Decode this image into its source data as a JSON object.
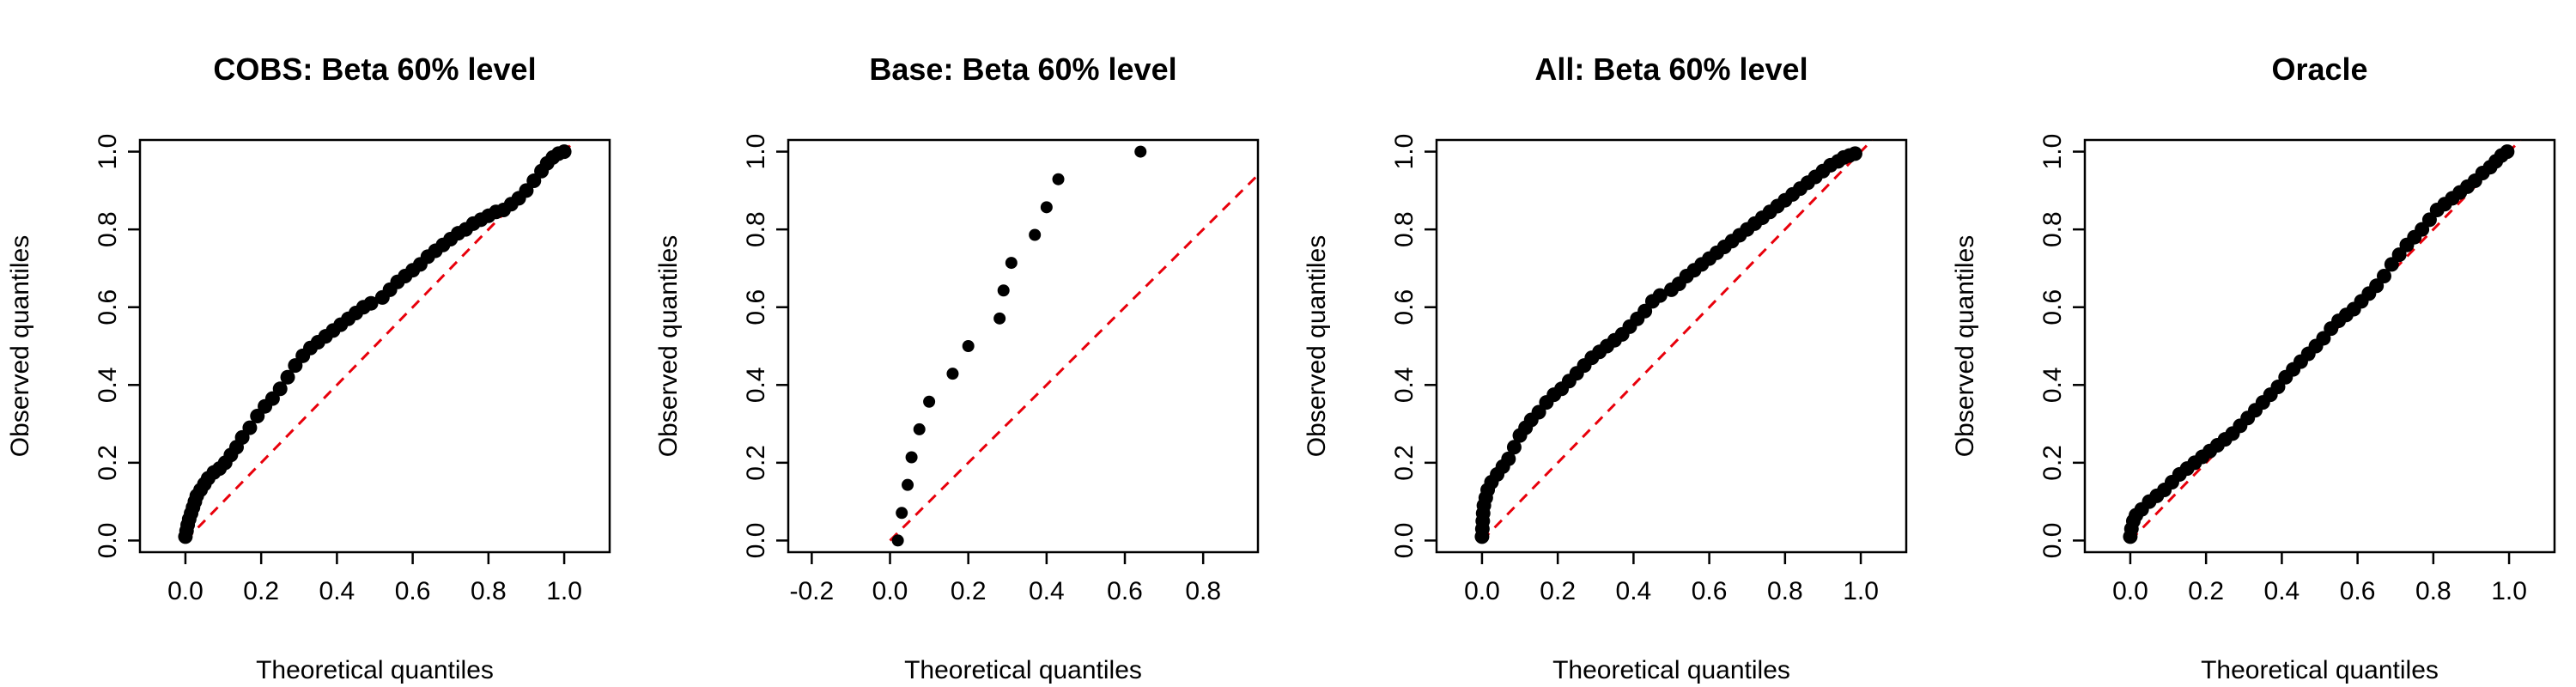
{
  "colors": {
    "points": "#000000",
    "reference_line": "#e8000b",
    "frame": "#000000"
  },
  "chart_data": [
    {
      "type": "scatter",
      "title": "COBS: Beta 60% level",
      "xlabel": "Theoretical quantiles",
      "ylabel": "Observed quantiles",
      "xlim": [
        -0.12,
        1.12
      ],
      "ylim": [
        -0.03,
        1.03
      ],
      "xticks": [
        "0.0",
        "0.2",
        "0.4",
        "0.6",
        "0.8",
        "1.0"
      ],
      "yticks": [
        "0.0",
        "0.2",
        "0.4",
        "0.6",
        "0.8",
        "1.0"
      ],
      "reference_line": "y = x (dashed red)",
      "points": [
        [
          0.0,
          0.01
        ],
        [
          0.003,
          0.025
        ],
        [
          0.006,
          0.04
        ],
        [
          0.01,
          0.055
        ],
        [
          0.015,
          0.07
        ],
        [
          0.02,
          0.085
        ],
        [
          0.025,
          0.1
        ],
        [
          0.03,
          0.115
        ],
        [
          0.04,
          0.13
        ],
        [
          0.05,
          0.145
        ],
        [
          0.06,
          0.16
        ],
        [
          0.075,
          0.175
        ],
        [
          0.09,
          0.185
        ],
        [
          0.105,
          0.2
        ],
        [
          0.12,
          0.22
        ],
        [
          0.135,
          0.24
        ],
        [
          0.15,
          0.265
        ],
        [
          0.17,
          0.29
        ],
        [
          0.19,
          0.32
        ],
        [
          0.21,
          0.345
        ],
        [
          0.23,
          0.365
        ],
        [
          0.25,
          0.39
        ],
        [
          0.27,
          0.42
        ],
        [
          0.29,
          0.45
        ],
        [
          0.31,
          0.475
        ],
        [
          0.33,
          0.495
        ],
        [
          0.35,
          0.51
        ],
        [
          0.37,
          0.525
        ],
        [
          0.39,
          0.54
        ],
        [
          0.41,
          0.555
        ],
        [
          0.43,
          0.57
        ],
        [
          0.45,
          0.585
        ],
        [
          0.47,
          0.6
        ],
        [
          0.49,
          0.61
        ],
        [
          0.52,
          0.625
        ],
        [
          0.54,
          0.645
        ],
        [
          0.56,
          0.665
        ],
        [
          0.58,
          0.68
        ],
        [
          0.6,
          0.695
        ],
        [
          0.62,
          0.71
        ],
        [
          0.64,
          0.73
        ],
        [
          0.66,
          0.745
        ],
        [
          0.68,
          0.76
        ],
        [
          0.7,
          0.775
        ],
        [
          0.72,
          0.79
        ],
        [
          0.74,
          0.8
        ],
        [
          0.76,
          0.815
        ],
        [
          0.78,
          0.825
        ],
        [
          0.8,
          0.835
        ],
        [
          0.82,
          0.845
        ],
        [
          0.84,
          0.85
        ],
        [
          0.86,
          0.865
        ],
        [
          0.88,
          0.88
        ],
        [
          0.9,
          0.9
        ],
        [
          0.92,
          0.925
        ],
        [
          0.94,
          0.95
        ],
        [
          0.955,
          0.97
        ],
        [
          0.97,
          0.985
        ],
        [
          0.985,
          0.995
        ],
        [
          1.0,
          1.0
        ]
      ]
    },
    {
      "type": "scatter",
      "title": "Base: Beta 60% level",
      "xlabel": "Theoretical quantiles",
      "ylabel": "Observed quantiles",
      "xlim": [
        -0.26,
        0.94
      ],
      "ylim": [
        -0.03,
        1.03
      ],
      "xticks": [
        "-0.2",
        "0.0",
        "0.2",
        "0.4",
        "0.6",
        "0.8"
      ],
      "yticks": [
        "0.0",
        "0.2",
        "0.4",
        "0.6",
        "0.8",
        "1.0"
      ],
      "reference_line": "y = x (dashed red)",
      "points": [
        [
          0.02,
          0.0
        ],
        [
          0.03,
          0.071
        ],
        [
          0.045,
          0.143
        ],
        [
          0.055,
          0.214
        ],
        [
          0.075,
          0.286
        ],
        [
          0.1,
          0.357
        ],
        [
          0.16,
          0.429
        ],
        [
          0.2,
          0.5
        ],
        [
          0.28,
          0.571
        ],
        [
          0.29,
          0.643
        ],
        [
          0.31,
          0.714
        ],
        [
          0.37,
          0.786
        ],
        [
          0.4,
          0.857
        ],
        [
          0.43,
          0.929
        ],
        [
          0.64,
          1.0
        ]
      ]
    },
    {
      "type": "scatter",
      "title": "All: Beta 60% level",
      "xlabel": "Theoretical quantiles",
      "ylabel": "Observed quantiles",
      "xlim": [
        -0.12,
        1.12
      ],
      "ylim": [
        -0.03,
        1.03
      ],
      "xticks": [
        "0.0",
        "0.2",
        "0.4",
        "0.6",
        "0.8",
        "1.0"
      ],
      "yticks": [
        "0.0",
        "0.2",
        "0.4",
        "0.6",
        "0.8",
        "1.0"
      ],
      "reference_line": "y = x (dashed red)",
      "points": [
        [
          0.0,
          0.01
        ],
        [
          0.001,
          0.03
        ],
        [
          0.002,
          0.05
        ],
        [
          0.003,
          0.07
        ],
        [
          0.005,
          0.09
        ],
        [
          0.01,
          0.11
        ],
        [
          0.015,
          0.13
        ],
        [
          0.025,
          0.15
        ],
        [
          0.04,
          0.17
        ],
        [
          0.055,
          0.19
        ],
        [
          0.07,
          0.21
        ],
        [
          0.085,
          0.24
        ],
        [
          0.1,
          0.27
        ],
        [
          0.115,
          0.29
        ],
        [
          0.13,
          0.31
        ],
        [
          0.15,
          0.33
        ],
        [
          0.17,
          0.355
        ],
        [
          0.19,
          0.375
        ],
        [
          0.21,
          0.39
        ],
        [
          0.23,
          0.41
        ],
        [
          0.25,
          0.43
        ],
        [
          0.27,
          0.45
        ],
        [
          0.29,
          0.47
        ],
        [
          0.31,
          0.485
        ],
        [
          0.33,
          0.5
        ],
        [
          0.35,
          0.515
        ],
        [
          0.37,
          0.53
        ],
        [
          0.39,
          0.55
        ],
        [
          0.41,
          0.57
        ],
        [
          0.43,
          0.59
        ],
        [
          0.45,
          0.615
        ],
        [
          0.47,
          0.63
        ],
        [
          0.5,
          0.645
        ],
        [
          0.52,
          0.66
        ],
        [
          0.54,
          0.68
        ],
        [
          0.56,
          0.695
        ],
        [
          0.58,
          0.71
        ],
        [
          0.6,
          0.725
        ],
        [
          0.62,
          0.74
        ],
        [
          0.64,
          0.755
        ],
        [
          0.66,
          0.77
        ],
        [
          0.68,
          0.785
        ],
        [
          0.7,
          0.8
        ],
        [
          0.72,
          0.815
        ],
        [
          0.74,
          0.83
        ],
        [
          0.76,
          0.845
        ],
        [
          0.78,
          0.86
        ],
        [
          0.8,
          0.875
        ],
        [
          0.82,
          0.89
        ],
        [
          0.84,
          0.905
        ],
        [
          0.86,
          0.92
        ],
        [
          0.88,
          0.935
        ],
        [
          0.9,
          0.95
        ],
        [
          0.92,
          0.965
        ],
        [
          0.94,
          0.975
        ],
        [
          0.955,
          0.985
        ],
        [
          0.97,
          0.99
        ],
        [
          0.985,
          0.995
        ]
      ]
    },
    {
      "type": "scatter",
      "title": "Oracle",
      "xlabel": "Theoretical quantiles",
      "ylabel": "Observed quantiles",
      "xlim": [
        -0.12,
        1.12
      ],
      "ylim": [
        -0.03,
        1.03
      ],
      "xticks": [
        "0.0",
        "0.2",
        "0.4",
        "0.6",
        "0.8",
        "1.0"
      ],
      "yticks": [
        "0.0",
        "0.2",
        "0.4",
        "0.6",
        "0.8",
        "1.0"
      ],
      "reference_line": "y = x (dashed red)",
      "points": [
        [
          0.0,
          0.01
        ],
        [
          0.003,
          0.03
        ],
        [
          0.008,
          0.05
        ],
        [
          0.015,
          0.065
        ],
        [
          0.03,
          0.08
        ],
        [
          0.05,
          0.1
        ],
        [
          0.07,
          0.115
        ],
        [
          0.09,
          0.13
        ],
        [
          0.11,
          0.15
        ],
        [
          0.13,
          0.17
        ],
        [
          0.15,
          0.185
        ],
        [
          0.17,
          0.2
        ],
        [
          0.19,
          0.215
        ],
        [
          0.21,
          0.23
        ],
        [
          0.23,
          0.245
        ],
        [
          0.25,
          0.26
        ],
        [
          0.27,
          0.275
        ],
        [
          0.29,
          0.295
        ],
        [
          0.31,
          0.315
        ],
        [
          0.33,
          0.335
        ],
        [
          0.35,
          0.355
        ],
        [
          0.37,
          0.375
        ],
        [
          0.39,
          0.395
        ],
        [
          0.41,
          0.42
        ],
        [
          0.43,
          0.44
        ],
        [
          0.45,
          0.46
        ],
        [
          0.47,
          0.48
        ],
        [
          0.49,
          0.5
        ],
        [
          0.51,
          0.52
        ],
        [
          0.53,
          0.545
        ],
        [
          0.55,
          0.565
        ],
        [
          0.57,
          0.58
        ],
        [
          0.59,
          0.595
        ],
        [
          0.61,
          0.615
        ],
        [
          0.63,
          0.635
        ],
        [
          0.65,
          0.655
        ],
        [
          0.67,
          0.68
        ],
        [
          0.69,
          0.71
        ],
        [
          0.71,
          0.735
        ],
        [
          0.73,
          0.76
        ],
        [
          0.75,
          0.78
        ],
        [
          0.77,
          0.8
        ],
        [
          0.79,
          0.825
        ],
        [
          0.81,
          0.85
        ],
        [
          0.83,
          0.865
        ],
        [
          0.85,
          0.88
        ],
        [
          0.87,
          0.895
        ],
        [
          0.89,
          0.91
        ],
        [
          0.91,
          0.925
        ],
        [
          0.93,
          0.945
        ],
        [
          0.95,
          0.96
        ],
        [
          0.965,
          0.975
        ],
        [
          0.98,
          0.99
        ],
        [
          0.995,
          1.0
        ]
      ]
    }
  ]
}
